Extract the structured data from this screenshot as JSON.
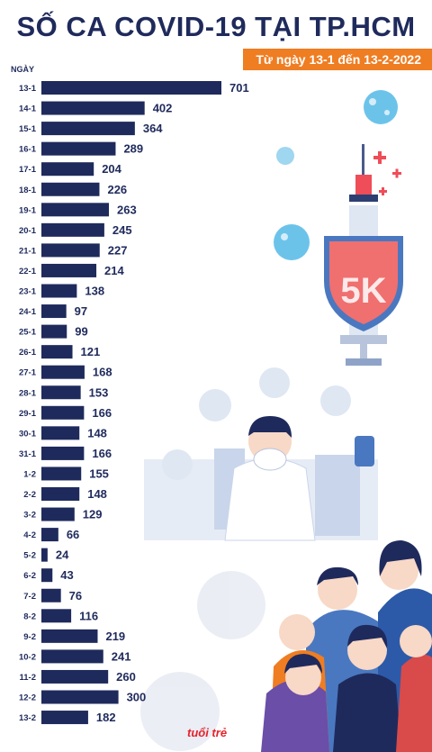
{
  "title": "SỐ CA COVID-19 TẠI TP.HCM",
  "subtitle": "Từ ngày 13-1 đến 13-2-2022",
  "logo_text": "tuổi trẻ",
  "chart_data": {
    "type": "bar",
    "orientation": "horizontal",
    "category_axis_title": "NGÀY",
    "categories": [
      "13-1",
      "14-1",
      "15-1",
      "16-1",
      "17-1",
      "18-1",
      "19-1",
      "20-1",
      "21-1",
      "22-1",
      "23-1",
      "24-1",
      "25-1",
      "26-1",
      "27-1",
      "28-1",
      "29-1",
      "30-1",
      "31-1",
      "1-2",
      "2-2",
      "3-2",
      "4-2",
      "5-2",
      "6-2",
      "7-2",
      "8-2",
      "9-2",
      "10-2",
      "11-2",
      "12-2",
      "13-2"
    ],
    "values": [
      701,
      402,
      364,
      289,
      204,
      226,
      263,
      245,
      227,
      214,
      138,
      97,
      99,
      121,
      168,
      153,
      166,
      148,
      166,
      155,
      148,
      129,
      66,
      24,
      43,
      76,
      116,
      219,
      241,
      260,
      300,
      182
    ],
    "bar_color": "#1f2a5c",
    "value_labels": true
  },
  "colors": {
    "title": "#1f2a5c",
    "subtitle_bg": "#ef7d22",
    "accent_red": "#e8212b",
    "virus_blue": "#6cc3ea"
  },
  "decorations": [
    "virus-icon",
    "syringe-icon",
    "5k-shield-icon",
    "doctor-illustration",
    "people-masks-illustration"
  ]
}
